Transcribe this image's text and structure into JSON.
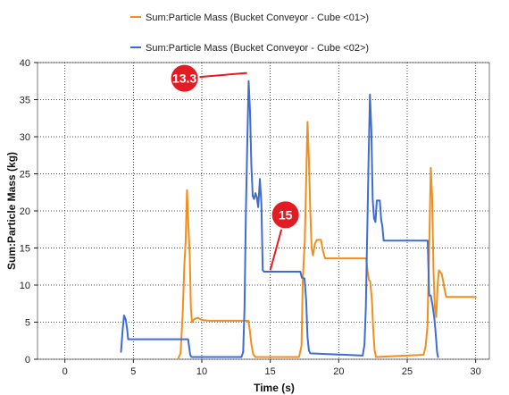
{
  "chart_data": {
    "type": "line",
    "xlabel": "Time (s)",
    "ylabel": "Sum:Particle Mass (kg)",
    "xlim": [
      -2,
      31
    ],
    "ylim": [
      0,
      40
    ],
    "x_ticks": [
      0,
      5,
      10,
      15,
      20,
      25,
      30
    ],
    "y_ticks": [
      0,
      5,
      10,
      15,
      20,
      25,
      30,
      35,
      40
    ],
    "grid": true,
    "legend_position": "top",
    "series": [
      {
        "name": "Sum:Particle Mass (Bucket Conveyor - Cube <01>)",
        "color": "#F28E1C",
        "points": [
          [
            8.3,
            0.2
          ],
          [
            8.45,
            0.8
          ],
          [
            8.6,
            6.0
          ],
          [
            8.72,
            12.5
          ],
          [
            8.82,
            16.0
          ],
          [
            8.92,
            22.8
          ],
          [
            9.02,
            18.0
          ],
          [
            9.12,
            14.0
          ],
          [
            9.2,
            7.0
          ],
          [
            9.28,
            5.0
          ],
          [
            9.45,
            5.4
          ],
          [
            9.7,
            5.6
          ],
          [
            10.0,
            5.3
          ],
          [
            10.5,
            5.2
          ],
          [
            12.0,
            5.2
          ],
          [
            13.4,
            5.2
          ],
          [
            13.5,
            4.0
          ],
          [
            13.62,
            2.0
          ],
          [
            13.75,
            0.7
          ],
          [
            13.9,
            0.3
          ],
          [
            17.1,
            0.3
          ],
          [
            17.28,
            1.8
          ],
          [
            17.38,
            11.0
          ],
          [
            17.52,
            16.0
          ],
          [
            17.62,
            24.0
          ],
          [
            17.72,
            32.0
          ],
          [
            17.82,
            27.0
          ],
          [
            17.92,
            20.0
          ],
          [
            18.02,
            15.0
          ],
          [
            18.12,
            14.0
          ],
          [
            18.25,
            15.5
          ],
          [
            18.4,
            16.1
          ],
          [
            18.7,
            16.1
          ],
          [
            18.85,
            14.6
          ],
          [
            19.0,
            13.6
          ],
          [
            20.0,
            13.6
          ],
          [
            21.0,
            13.6
          ],
          [
            22.0,
            13.6
          ],
          [
            22.1,
            12.0
          ],
          [
            22.2,
            10.7
          ],
          [
            22.3,
            10.5
          ],
          [
            22.42,
            8.0
          ],
          [
            22.52,
            4.0
          ],
          [
            22.62,
            1.2
          ],
          [
            22.72,
            0.3
          ],
          [
            26.2,
            0.6
          ],
          [
            26.35,
            1.8
          ],
          [
            26.48,
            4.5
          ],
          [
            26.62,
            16.0
          ],
          [
            26.72,
            25.8
          ],
          [
            26.82,
            22.0
          ],
          [
            26.92,
            12.0
          ],
          [
            27.02,
            7.0
          ],
          [
            27.12,
            5.7
          ],
          [
            27.22,
            10.0
          ],
          [
            27.32,
            12.0
          ],
          [
            27.52,
            11.5
          ],
          [
            27.62,
            10.6
          ],
          [
            27.72,
            9.5
          ],
          [
            27.85,
            8.4
          ],
          [
            28.5,
            8.4
          ],
          [
            29.4,
            8.4
          ],
          [
            30.0,
            8.4
          ]
        ]
      },
      {
        "name": "Sum:Particle Mass (Bucket Conveyor - Cube <02>)",
        "color": "#3F6CD2",
        "points": [
          [
            4.1,
            1.0
          ],
          [
            4.22,
            4.0
          ],
          [
            4.32,
            5.9
          ],
          [
            4.45,
            5.3
          ],
          [
            4.55,
            4.0
          ],
          [
            4.62,
            2.7
          ],
          [
            5.0,
            2.7
          ],
          [
            6.5,
            2.7
          ],
          [
            7.5,
            2.7
          ],
          [
            8.5,
            2.7
          ],
          [
            9.0,
            2.7
          ],
          [
            9.05,
            2.0
          ],
          [
            9.15,
            0.6
          ],
          [
            9.25,
            0.3
          ],
          [
            12.9,
            0.3
          ],
          [
            13.02,
            1.0
          ],
          [
            13.12,
            7.0
          ],
          [
            13.22,
            20.0
          ],
          [
            13.32,
            29.0
          ],
          [
            13.42,
            37.5
          ],
          [
            13.52,
            33.5
          ],
          [
            13.62,
            26.0
          ],
          [
            13.72,
            22.0
          ],
          [
            13.82,
            21.6
          ],
          [
            13.92,
            22.4
          ],
          [
            14.02,
            21.8
          ],
          [
            14.12,
            20.5
          ],
          [
            14.24,
            24.3
          ],
          [
            14.35,
            21.0
          ],
          [
            14.45,
            12.0
          ],
          [
            14.55,
            11.8
          ],
          [
            15.0,
            11.8
          ],
          [
            16.0,
            11.8
          ],
          [
            16.8,
            11.8
          ],
          [
            17.2,
            11.8
          ],
          [
            17.3,
            11.0
          ],
          [
            17.5,
            10.9
          ],
          [
            17.62,
            8.0
          ],
          [
            17.72,
            3.0
          ],
          [
            17.82,
            1.2
          ],
          [
            17.92,
            0.8
          ],
          [
            21.75,
            0.5
          ],
          [
            21.88,
            2.0
          ],
          [
            21.98,
            7.0
          ],
          [
            22.08,
            17.0
          ],
          [
            22.18,
            27.0
          ],
          [
            22.28,
            35.7
          ],
          [
            22.38,
            31.0
          ],
          [
            22.48,
            21.5
          ],
          [
            22.58,
            19.0
          ],
          [
            22.68,
            18.5
          ],
          [
            22.78,
            21.4
          ],
          [
            23.0,
            21.4
          ],
          [
            23.1,
            18.8
          ],
          [
            23.18,
            18.0
          ],
          [
            23.28,
            16.0
          ],
          [
            24.0,
            16.0
          ],
          [
            25.0,
            16.0
          ],
          [
            26.0,
            16.0
          ],
          [
            26.5,
            16.0
          ],
          [
            26.6,
            8.6
          ],
          [
            26.72,
            8.6
          ],
          [
            26.85,
            7.3
          ],
          [
            26.98,
            5.6
          ],
          [
            27.08,
            3.5
          ],
          [
            27.18,
            1.0
          ],
          [
            27.25,
            0.3
          ]
        ]
      }
    ],
    "annotations": [
      {
        "text": "13.3",
        "x": 13.3,
        "y": 38.6
      },
      {
        "text": "15",
        "x": 15,
        "y": 12.0
      }
    ]
  }
}
